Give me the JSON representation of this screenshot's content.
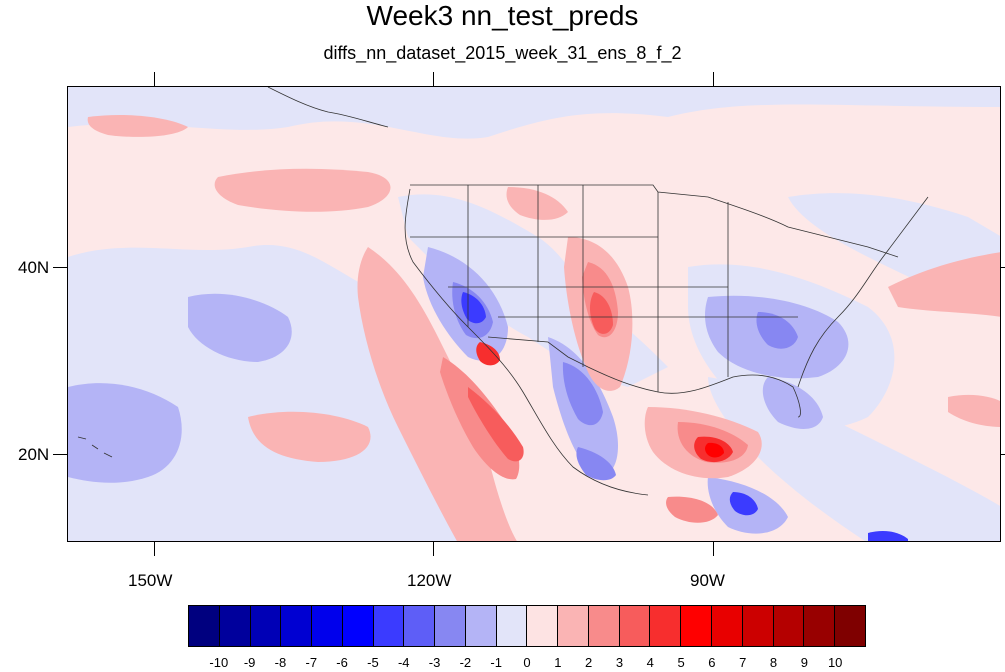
{
  "title": "Week3 nn_test_preds",
  "subtitle": "diffs_nn_dataset_2015_week_31_ens_8_f_2",
  "latitude_labels": [
    "40N",
    "20N"
  ],
  "longitude_labels": [
    "150W",
    "120W",
    "90W"
  ],
  "colorbar": {
    "labels": [
      "-10",
      "-9",
      "-8",
      "-7",
      "-6",
      "-5",
      "-4",
      "-3",
      "-2",
      "-1",
      "0",
      "1",
      "2",
      "3",
      "4",
      "5",
      "6",
      "7",
      "8",
      "9",
      "10"
    ],
    "colors": [
      "#00007f",
      "#00009c",
      "#0000b6",
      "#0000d2",
      "#0000ec",
      "#0000ff",
      "#3b3bff",
      "#5e5ef7",
      "#8787f2",
      "#b4b4f6",
      "#e2e4f9",
      "#fde3e3",
      "#fab4b4",
      "#f88b8b",
      "#f75c5c",
      "#f72e2e",
      "#ff0000",
      "#e80000",
      "#cc0000",
      "#b40000",
      "#980000",
      "#7f0000"
    ]
  },
  "map_colors": {
    "background": "#fde8e8",
    "light_blue": "#e2e4f9",
    "blue_1": "#b4b4f6",
    "blue_2": "#8787f2",
    "blue_3": "#5e5ef7",
    "blue_4": "#3b3bff",
    "pink_1": "#fab4b4",
    "pink_2": "#f88b8b",
    "red_1": "#f75c5c",
    "red_2": "#f72e2e",
    "red_3": "#ff0000"
  }
}
